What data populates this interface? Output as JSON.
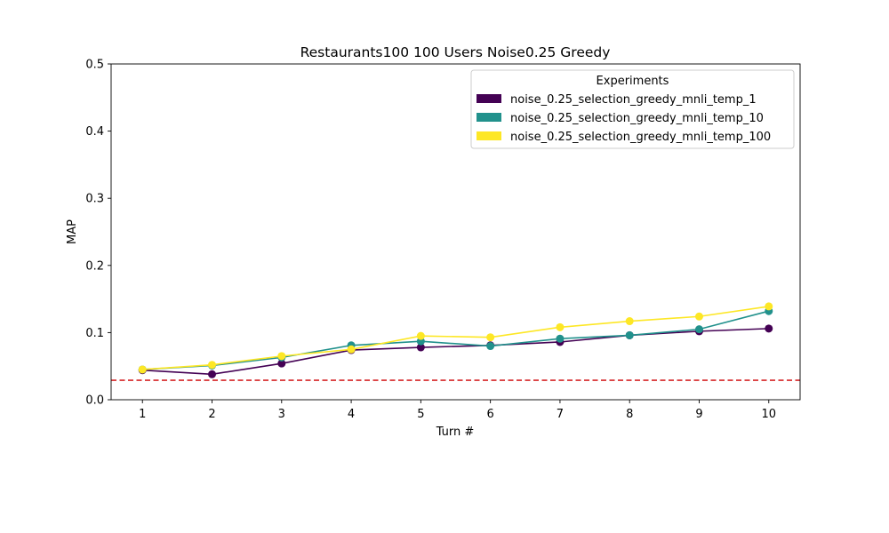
{
  "chart_data": {
    "type": "line",
    "title": "Restaurants100 100 Users Noise0.25 Greedy",
    "xlabel": "Turn #",
    "ylabel": "MAP",
    "x": [
      1,
      2,
      3,
      4,
      5,
      6,
      7,
      8,
      9,
      10
    ],
    "xlim": [
      0.55,
      10.45
    ],
    "ylim": [
      0.0,
      0.5
    ],
    "yticks": [
      "0.0",
      "0.1",
      "0.2",
      "0.3",
      "0.4",
      "0.5"
    ],
    "xticks": [
      "1",
      "2",
      "3",
      "4",
      "5",
      "6",
      "7",
      "8",
      "9",
      "10"
    ],
    "grid": false,
    "baseline": {
      "value": 0.029,
      "color": "#d62728",
      "style": "dashed"
    },
    "legend": {
      "title": "Experiments",
      "placement": "upper right"
    },
    "series": [
      {
        "name": "noise_0.25_selection_greedy_mnli_temp_1",
        "color": "#440154",
        "values": [
          0.044,
          0.038,
          0.054,
          0.074,
          0.078,
          0.081,
          0.086,
          0.096,
          0.102,
          0.106
        ]
      },
      {
        "name": "noise_0.25_selection_greedy_mnli_temp_10",
        "color": "#21918c",
        "values": [
          0.045,
          0.051,
          0.063,
          0.081,
          0.087,
          0.08,
          0.091,
          0.096,
          0.105,
          0.132
        ]
      },
      {
        "name": "noise_0.25_selection_greedy_mnli_temp_100",
        "color": "#fde725",
        "values": [
          0.045,
          0.052,
          0.065,
          0.075,
          0.095,
          0.093,
          0.108,
          0.117,
          0.124,
          0.139
        ]
      }
    ]
  }
}
